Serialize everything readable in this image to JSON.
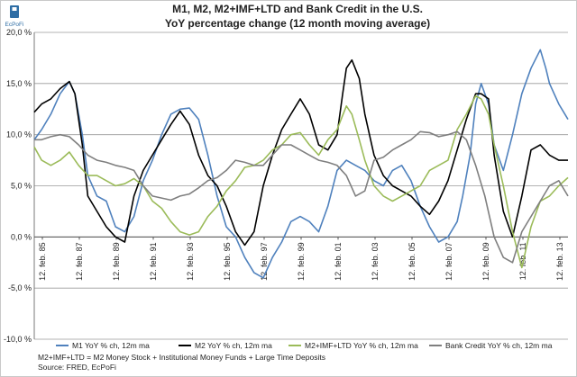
{
  "logo": {
    "text": "EcPoFi",
    "color": "#2e6da4"
  },
  "footnote": {
    "line1": "M2+IMF+LTD  = M2 Money Stock + Institutional Money Funds + Large Time Deposits",
    "line2": "Source: FRED, EcPoFi"
  },
  "chart_data": {
    "type": "line",
    "title": "M1, M2, M2+IMF+LTD and Bank Credit in the U.S.",
    "subtitle": "YoY percentage change (12 month moving average)",
    "xlabel": "",
    "ylabel": "",
    "ylim": [
      -10,
      20
    ],
    "y_ticks": [
      "-10,0 %",
      "-5,0 %",
      "0,0 %",
      "5,0 %",
      "10,0 %",
      "15,0 %",
      "20,0 %"
    ],
    "y_tick_values": [
      -10,
      -5,
      0,
      5,
      10,
      15,
      20
    ],
    "x_ticks": [
      "12. feb. 85",
      "12. feb. 87",
      "12. feb. 89",
      "12. feb. 91",
      "12. feb. 93",
      "12. feb. 95",
      "12. feb. 97",
      "12. feb. 99",
      "12. feb. 01",
      "12. feb. 03",
      "12. feb. 05",
      "12. feb. 07",
      "12. feb. 09",
      "12. feb. 11",
      "12. feb. 13"
    ],
    "xlim": [
      1985.1,
      2014.0
    ],
    "grid": "horizontal",
    "legend_position": "bottom",
    "series": [
      {
        "name": "M1 YoY % ch, 12m ma",
        "color": "#4f81bd",
        "x": [
          1985.1,
          1985.5,
          1986.0,
          1986.5,
          1987.0,
          1987.3,
          1987.7,
          1988.0,
          1988.5,
          1989.0,
          1989.5,
          1990.0,
          1990.5,
          1991.0,
          1991.5,
          1992.0,
          1992.5,
          1993.0,
          1993.5,
          1994.0,
          1994.5,
          1995.0,
          1995.5,
          1996.0,
          1996.5,
          1997.0,
          1997.5,
          1998.0,
          1998.5,
          1999.0,
          1999.5,
          2000.0,
          2000.5,
          2001.0,
          2001.5,
          2002.0,
          2002.5,
          2003.0,
          2003.5,
          2004.0,
          2004.5,
          2005.0,
          2005.5,
          2006.0,
          2006.5,
          2007.0,
          2007.5,
          2008.0,
          2008.3,
          2008.7,
          2009.0,
          2009.3,
          2009.7,
          2010.0,
          2010.5,
          2011.0,
          2011.5,
          2012.0,
          2012.5,
          2012.8,
          2013.0,
          2013.5,
          2014.0
        ],
        "y": [
          9.5,
          10.5,
          12.0,
          14.0,
          15.2,
          14.0,
          10.0,
          6.0,
          4.0,
          3.5,
          1.0,
          0.5,
          2.0,
          5.5,
          7.5,
          10.0,
          12.0,
          12.5,
          12.6,
          11.5,
          8.0,
          4.0,
          1.0,
          0.0,
          -2.0,
          -3.5,
          -4.0,
          -2.0,
          -0.5,
          1.5,
          2.0,
          1.5,
          0.5,
          3.0,
          6.5,
          7.5,
          7.0,
          6.5,
          5.5,
          5.0,
          6.5,
          7.0,
          5.5,
          3.0,
          1.0,
          -0.5,
          0.0,
          1.5,
          4.0,
          8.0,
          13.0,
          15.0,
          13.0,
          9.0,
          6.5,
          10.0,
          14.0,
          16.5,
          18.3,
          16.5,
          15.0,
          13.0,
          11.5
        ]
      },
      {
        "name": "M2 YoY % ch, 12m ma",
        "color": "#000000",
        "x": [
          1985.1,
          1985.5,
          1986.0,
          1986.5,
          1987.0,
          1987.3,
          1987.7,
          1988.0,
          1988.5,
          1989.0,
          1989.5,
          1990.0,
          1990.5,
          1991.0,
          1991.5,
          1992.0,
          1992.5,
          1993.0,
          1993.5,
          1994.0,
          1994.5,
          1995.0,
          1995.5,
          1996.0,
          1996.5,
          1997.0,
          1997.5,
          1998.0,
          1998.5,
          1999.0,
          1999.5,
          2000.0,
          2000.5,
          2001.0,
          2001.5,
          2001.8,
          2002.0,
          2002.3,
          2002.7,
          2003.0,
          2003.5,
          2004.0,
          2004.5,
          2005.0,
          2005.5,
          2006.0,
          2006.5,
          2007.0,
          2007.5,
          2008.0,
          2008.5,
          2009.0,
          2009.3,
          2009.7,
          2010.0,
          2010.5,
          2011.0,
          2011.5,
          2012.0,
          2012.5,
          2013.0,
          2013.5,
          2014.0
        ],
        "y": [
          12.2,
          13.0,
          13.5,
          14.5,
          15.2,
          14.0,
          9.0,
          4.0,
          2.5,
          1.0,
          0.0,
          -0.5,
          4.0,
          6.5,
          8.0,
          9.5,
          11.0,
          12.3,
          11.0,
          8.0,
          6.0,
          5.0,
          3.0,
          0.5,
          -0.8,
          0.5,
          5.0,
          8.0,
          10.5,
          12.0,
          13.5,
          12.0,
          9.0,
          8.5,
          10.0,
          14.0,
          16.5,
          17.3,
          15.5,
          12.0,
          8.0,
          6.0,
          5.0,
          4.5,
          4.0,
          3.0,
          2.2,
          3.5,
          5.5,
          8.5,
          11.5,
          14.0,
          14.0,
          13.5,
          8.0,
          2.5,
          0.0,
          4.0,
          8.5,
          9.0,
          8.0,
          7.5,
          7.5
        ]
      },
      {
        "name": "M2+IMF+LTD YoY % ch, 12m ma",
        "color": "#9bbb59",
        "x": [
          1985.1,
          1985.5,
          1986.0,
          1986.5,
          1987.0,
          1987.5,
          1988.0,
          1988.5,
          1989.0,
          1989.5,
          1990.0,
          1990.5,
          1991.0,
          1991.5,
          1992.0,
          1992.5,
          1993.0,
          1993.5,
          1994.0,
          1994.5,
          1995.0,
          1995.5,
          1996.0,
          1996.5,
          1997.0,
          1997.5,
          1998.0,
          1998.5,
          1999.0,
          1999.5,
          2000.0,
          2000.5,
          2001.0,
          2001.5,
          2002.0,
          2002.3,
          2002.7,
          2003.0,
          2003.5,
          2004.0,
          2004.5,
          2005.0,
          2005.5,
          2006.0,
          2006.5,
          2007.0,
          2007.5,
          2008.0,
          2008.5,
          2009.0,
          2009.3,
          2009.7,
          2010.0,
          2010.5,
          2011.0,
          2011.5,
          2012.0,
          2012.5,
          2013.0,
          2013.5,
          2014.0
        ],
        "y": [
          8.8,
          7.5,
          7.0,
          7.5,
          8.3,
          7.0,
          6.0,
          6.0,
          5.5,
          5.0,
          5.2,
          5.7,
          5.0,
          3.5,
          2.8,
          1.5,
          0.5,
          0.2,
          0.5,
          2.0,
          3.0,
          4.5,
          5.5,
          6.8,
          7.0,
          7.5,
          8.5,
          9.0,
          10.0,
          10.2,
          9.0,
          8.0,
          9.5,
          10.5,
          12.8,
          12.0,
          9.5,
          7.5,
          5.0,
          4.0,
          3.5,
          4.0,
          4.5,
          5.0,
          6.5,
          7.0,
          7.5,
          10.5,
          12.0,
          13.8,
          13.5,
          12.0,
          9.0,
          5.0,
          0.5,
          -3.0,
          1.0,
          3.5,
          4.0,
          5.0,
          5.8
        ]
      },
      {
        "name": "Bank Credit YoY % ch, 12m ma",
        "color": "#7f7f7f",
        "x": [
          1985.1,
          1985.5,
          1986.0,
          1986.5,
          1987.0,
          1987.5,
          1988.0,
          1988.5,
          1989.0,
          1989.5,
          1990.0,
          1990.5,
          1991.0,
          1991.5,
          1992.0,
          1992.5,
          1993.0,
          1993.5,
          1994.0,
          1994.5,
          1995.0,
          1995.5,
          1996.0,
          1996.5,
          1997.0,
          1997.5,
          1998.0,
          1998.5,
          1999.0,
          1999.5,
          2000.0,
          2000.5,
          2001.0,
          2001.5,
          2002.0,
          2002.5,
          2003.0,
          2003.5,
          2004.0,
          2004.5,
          2005.0,
          2005.5,
          2006.0,
          2006.5,
          2007.0,
          2007.5,
          2008.0,
          2008.5,
          2009.0,
          2009.5,
          2010.0,
          2010.5,
          2011.0,
          2011.5,
          2012.0,
          2012.5,
          2013.0,
          2013.5,
          2014.0
        ],
        "y": [
          9.5,
          9.5,
          9.8,
          10.0,
          9.8,
          9.0,
          8.0,
          7.5,
          7.3,
          7.0,
          6.8,
          6.5,
          5.0,
          4.0,
          3.8,
          3.6,
          4.0,
          4.2,
          4.8,
          5.5,
          5.8,
          6.5,
          7.5,
          7.3,
          7.0,
          7.0,
          8.0,
          9.0,
          9.0,
          8.5,
          8.0,
          7.5,
          7.3,
          7.0,
          6.0,
          4.0,
          4.5,
          7.5,
          7.8,
          8.5,
          9.0,
          9.5,
          10.3,
          10.2,
          9.8,
          10.0,
          10.3,
          9.5,
          7.0,
          4.0,
          0.0,
          -2.0,
          -2.5,
          0.5,
          2.0,
          3.5,
          5.0,
          5.5,
          4.0
        ]
      }
    ]
  }
}
